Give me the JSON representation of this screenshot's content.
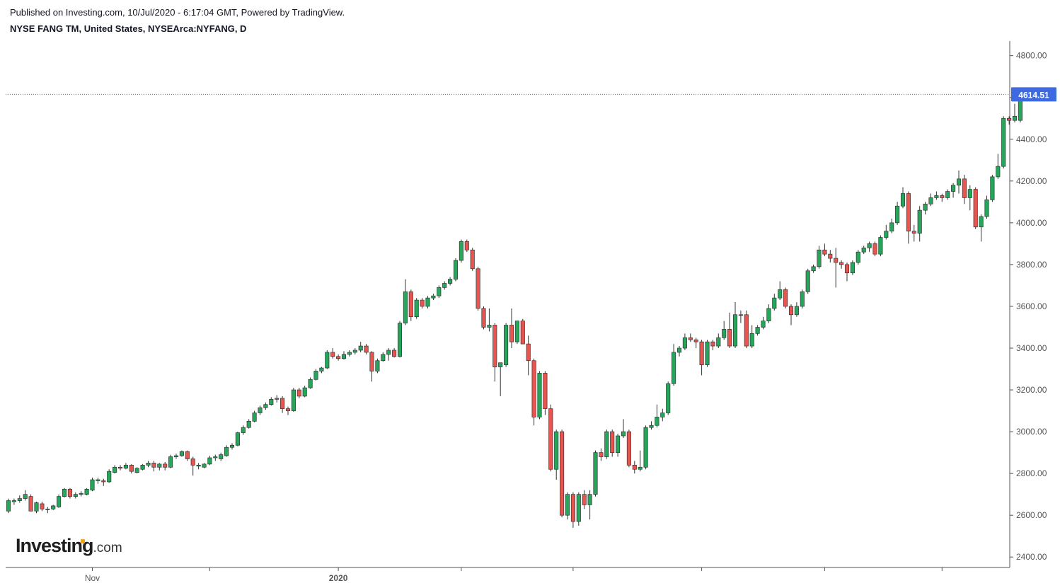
{
  "header": {
    "published": "Published on Investing.com, 10/Jul/2020 - 6:17:04 GMT, Powered by TradingView.",
    "symbol": "NYSE FANG TM, United States, NYSEArca:NYFANG, D"
  },
  "brand": {
    "main": "Investing",
    "sub": ".com"
  },
  "colors": {
    "up": "#26a65b",
    "down": "#e8554f",
    "last_price_line": "#3d6ae0",
    "axis": "#555555"
  },
  "chart_data": {
    "type": "candlestick",
    "ylim": [
      2350,
      4870
    ],
    "y_ticks": [
      2400,
      2600,
      2800,
      3000,
      3200,
      3400,
      3600,
      3800,
      4000,
      4200,
      4400,
      4600,
      4800
    ],
    "y_tick_labels": [
      "2400.00",
      "2600.00",
      "2800.00",
      "3000.00",
      "3200.00",
      "3400.00",
      "3600.00",
      "3800.00",
      "4000.00",
      "4200.00",
      "4400.00",
      "4600.00",
      "4800.00"
    ],
    "x_labels": [
      {
        "label": "Nov",
        "index": 15
      },
      {
        "label": "2020",
        "index": 59,
        "bold": true
      }
    ],
    "x_ticks": [
      15,
      36,
      59,
      81,
      101,
      124,
      146,
      167,
      190
    ],
    "last_price": 4614.51,
    "last_price_label": "4614.51",
    "candles": [
      [
        2620,
        2680,
        2610,
        2670
      ],
      [
        2665,
        2680,
        2650,
        2670
      ],
      [
        2670,
        2695,
        2660,
        2680
      ],
      [
        2680,
        2720,
        2670,
        2700
      ],
      [
        2690,
        2700,
        2620,
        2620
      ],
      [
        2620,
        2665,
        2610,
        2660
      ],
      [
        2655,
        2665,
        2620,
        2630
      ],
      [
        2630,
        2640,
        2610,
        2630
      ],
      [
        2630,
        2650,
        2625,
        2645
      ],
      [
        2640,
        2700,
        2635,
        2690
      ],
      [
        2690,
        2730,
        2685,
        2725
      ],
      [
        2725,
        2730,
        2680,
        2690
      ],
      [
        2690,
        2710,
        2680,
        2700
      ],
      [
        2700,
        2715,
        2690,
        2705
      ],
      [
        2700,
        2730,
        2695,
        2725
      ],
      [
        2720,
        2780,
        2715,
        2770
      ],
      [
        2765,
        2780,
        2750,
        2770
      ],
      [
        2765,
        2775,
        2740,
        2760
      ],
      [
        2760,
        2820,
        2755,
        2810
      ],
      [
        2805,
        2840,
        2800,
        2830
      ],
      [
        2830,
        2840,
        2815,
        2825
      ],
      [
        2825,
        2850,
        2820,
        2840
      ],
      [
        2840,
        2845,
        2800,
        2810
      ],
      [
        2805,
        2830,
        2800,
        2825
      ],
      [
        2820,
        2845,
        2815,
        2840
      ],
      [
        2840,
        2860,
        2830,
        2850
      ],
      [
        2850,
        2860,
        2810,
        2830
      ],
      [
        2830,
        2850,
        2815,
        2845
      ],
      [
        2845,
        2855,
        2815,
        2830
      ],
      [
        2830,
        2890,
        2825,
        2880
      ],
      [
        2880,
        2895,
        2870,
        2885
      ],
      [
        2885,
        2910,
        2880,
        2905
      ],
      [
        2905,
        2910,
        2860,
        2870
      ],
      [
        2870,
        2880,
        2790,
        2840
      ],
      [
        2835,
        2850,
        2820,
        2840
      ],
      [
        2830,
        2850,
        2825,
        2845
      ],
      [
        2845,
        2885,
        2840,
        2875
      ],
      [
        2875,
        2890,
        2860,
        2880
      ],
      [
        2870,
        2900,
        2860,
        2890
      ],
      [
        2885,
        2935,
        2880,
        2925
      ],
      [
        2925,
        2945,
        2915,
        2935
      ],
      [
        2935,
        3000,
        2930,
        2995
      ],
      [
        2995,
        3030,
        2985,
        3020
      ],
      [
        3020,
        3060,
        3015,
        3050
      ],
      [
        3050,
        3100,
        3045,
        3090
      ],
      [
        3090,
        3125,
        3080,
        3115
      ],
      [
        3115,
        3140,
        3105,
        3130
      ],
      [
        3130,
        3165,
        3125,
        3155
      ],
      [
        3155,
        3175,
        3140,
        3160
      ],
      [
        3160,
        3170,
        3090,
        3110
      ],
      [
        3110,
        3120,
        3080,
        3100
      ],
      [
        3100,
        3210,
        3095,
        3200
      ],
      [
        3200,
        3210,
        3160,
        3170
      ],
      [
        3170,
        3220,
        3165,
        3210
      ],
      [
        3210,
        3260,
        3205,
        3250
      ],
      [
        3250,
        3300,
        3245,
        3290
      ],
      [
        3290,
        3310,
        3280,
        3305
      ],
      [
        3305,
        3390,
        3300,
        3380
      ],
      [
        3380,
        3400,
        3350,
        3360
      ],
      [
        3360,
        3370,
        3340,
        3350
      ],
      [
        3350,
        3385,
        3345,
        3370
      ],
      [
        3370,
        3390,
        3360,
        3380
      ],
      [
        3380,
        3400,
        3370,
        3390
      ],
      [
        3390,
        3430,
        3380,
        3410
      ],
      [
        3410,
        3420,
        3370,
        3380
      ],
      [
        3380,
        3385,
        3240,
        3290
      ],
      [
        3290,
        3350,
        3280,
        3340
      ],
      [
        3340,
        3380,
        3335,
        3370
      ],
      [
        3370,
        3400,
        3340,
        3390
      ],
      [
        3390,
        3400,
        3355,
        3360
      ],
      [
        3360,
        3530,
        3355,
        3520
      ],
      [
        3520,
        3730,
        3510,
        3670
      ],
      [
        3670,
        3680,
        3530,
        3550
      ],
      [
        3550,
        3640,
        3540,
        3630
      ],
      [
        3630,
        3640,
        3590,
        3600
      ],
      [
        3600,
        3650,
        3590,
        3640
      ],
      [
        3640,
        3660,
        3630,
        3650
      ],
      [
        3650,
        3700,
        3640,
        3690
      ],
      [
        3690,
        3720,
        3680,
        3710
      ],
      [
        3710,
        3740,
        3700,
        3730
      ],
      [
        3730,
        3830,
        3720,
        3820
      ],
      [
        3820,
        3920,
        3810,
        3910
      ],
      [
        3910,
        3920,
        3860,
        3870
      ],
      [
        3870,
        3880,
        3770,
        3780
      ],
      [
        3780,
        3790,
        3580,
        3590
      ],
      [
        3590,
        3600,
        3490,
        3500
      ],
      [
        3500,
        3590,
        3480,
        3510
      ],
      [
        3510,
        3520,
        3240,
        3310
      ],
      [
        3310,
        3330,
        3170,
        3330
      ],
      [
        3320,
        3520,
        3310,
        3510
      ],
      [
        3510,
        3590,
        3400,
        3430
      ],
      [
        3430,
        3530,
        3420,
        3530
      ],
      [
        3530,
        3540,
        3420,
        3420
      ],
      [
        3420,
        3460,
        3270,
        3340
      ],
      [
        3340,
        3350,
        3030,
        3070
      ],
      [
        3070,
        3290,
        3060,
        3280
      ],
      [
        3280,
        3290,
        3080,
        3110
      ],
      [
        3110,
        3130,
        2810,
        2820
      ],
      [
        2820,
        3010,
        2770,
        3000
      ],
      [
        3000,
        3010,
        2590,
        2600
      ],
      [
        2600,
        2710,
        2580,
        2700
      ],
      [
        2700,
        2710,
        2540,
        2570
      ],
      [
        2570,
        2710,
        2550,
        2700
      ],
      [
        2700,
        2720,
        2630,
        2650
      ],
      [
        2650,
        2720,
        2580,
        2700
      ],
      [
        2700,
        2910,
        2690,
        2900
      ],
      [
        2900,
        2920,
        2860,
        2880
      ],
      [
        2880,
        3010,
        2870,
        3000
      ],
      [
        3000,
        3010,
        2880,
        2900
      ],
      [
        2900,
        2990,
        2880,
        2980
      ],
      [
        2980,
        3060,
        2970,
        3000
      ],
      [
        3000,
        3010,
        2830,
        2840
      ],
      [
        2840,
        2860,
        2800,
        2820
      ],
      [
        2820,
        2910,
        2810,
        2830
      ],
      [
        2830,
        3030,
        2820,
        3020
      ],
      [
        3020,
        3050,
        3010,
        3030
      ],
      [
        3030,
        3130,
        3020,
        3070
      ],
      [
        3070,
        3110,
        3050,
        3090
      ],
      [
        3090,
        3240,
        3080,
        3230
      ],
      [
        3230,
        3420,
        3220,
        3380
      ],
      [
        3380,
        3410,
        3360,
        3400
      ],
      [
        3400,
        3470,
        3390,
        3450
      ],
      [
        3450,
        3470,
        3430,
        3440
      ],
      [
        3440,
        3450,
        3400,
        3430
      ],
      [
        3430,
        3440,
        3270,
        3320
      ],
      [
        3320,
        3440,
        3310,
        3430
      ],
      [
        3430,
        3440,
        3390,
        3410
      ],
      [
        3410,
        3470,
        3400,
        3450
      ],
      [
        3450,
        3530,
        3440,
        3490
      ],
      [
        3490,
        3570,
        3400,
        3410
      ],
      [
        3410,
        3620,
        3400,
        3560
      ],
      [
        3560,
        3580,
        3520,
        3560
      ],
      [
        3560,
        3580,
        3400,
        3410
      ],
      [
        3410,
        3510,
        3400,
        3470
      ],
      [
        3470,
        3510,
        3460,
        3500
      ],
      [
        3500,
        3550,
        3490,
        3530
      ],
      [
        3530,
        3610,
        3520,
        3590
      ],
      [
        3590,
        3660,
        3580,
        3640
      ],
      [
        3640,
        3720,
        3630,
        3680
      ],
      [
        3680,
        3690,
        3590,
        3600
      ],
      [
        3600,
        3610,
        3510,
        3560
      ],
      [
        3560,
        3620,
        3550,
        3600
      ],
      [
        3600,
        3680,
        3590,
        3670
      ],
      [
        3670,
        3780,
        3660,
        3770
      ],
      [
        3770,
        3800,
        3760,
        3790
      ],
      [
        3790,
        3890,
        3780,
        3870
      ],
      [
        3870,
        3900,
        3840,
        3850
      ],
      [
        3850,
        3870,
        3810,
        3830
      ],
      [
        3830,
        3880,
        3690,
        3810
      ],
      [
        3810,
        3820,
        3780,
        3800
      ],
      [
        3800,
        3810,
        3720,
        3760
      ],
      [
        3760,
        3820,
        3750,
        3810
      ],
      [
        3810,
        3870,
        3800,
        3860
      ],
      [
        3860,
        3890,
        3850,
        3880
      ],
      [
        3880,
        3910,
        3860,
        3900
      ],
      [
        3900,
        3910,
        3840,
        3850
      ],
      [
        3850,
        3940,
        3840,
        3930
      ],
      [
        3930,
        3990,
        3920,
        3960
      ],
      [
        3960,
        4020,
        3950,
        4000
      ],
      [
        4000,
        4100,
        3990,
        4080
      ],
      [
        4080,
        4170,
        4070,
        4140
      ],
      [
        4140,
        4150,
        3900,
        3960
      ],
      [
        3960,
        3990,
        3910,
        3950
      ],
      [
        3950,
        4080,
        3910,
        4060
      ],
      [
        4060,
        4100,
        4040,
        4090
      ],
      [
        4090,
        4140,
        4080,
        4120
      ],
      [
        4120,
        4150,
        4110,
        4130
      ],
      [
        4130,
        4140,
        4100,
        4120
      ],
      [
        4120,
        4160,
        4110,
        4150
      ],
      [
        4150,
        4190,
        4120,
        4180
      ],
      [
        4180,
        4250,
        4140,
        4210
      ],
      [
        4210,
        4230,
        4090,
        4120
      ],
      [
        4120,
        4180,
        4060,
        4160
      ],
      [
        4160,
        4170,
        3970,
        3980
      ],
      [
        3980,
        4040,
        3910,
        4030
      ],
      [
        4030,
        4130,
        4020,
        4110
      ],
      [
        4110,
        4230,
        4100,
        4220
      ],
      [
        4220,
        4330,
        4210,
        4270
      ],
      [
        4270,
        4510,
        4260,
        4500
      ],
      [
        4500,
        4510,
        4470,
        4490
      ],
      [
        4490,
        4570,
        4480,
        4510
      ],
      [
        4490,
        4630,
        4480,
        4614.51
      ]
    ]
  }
}
